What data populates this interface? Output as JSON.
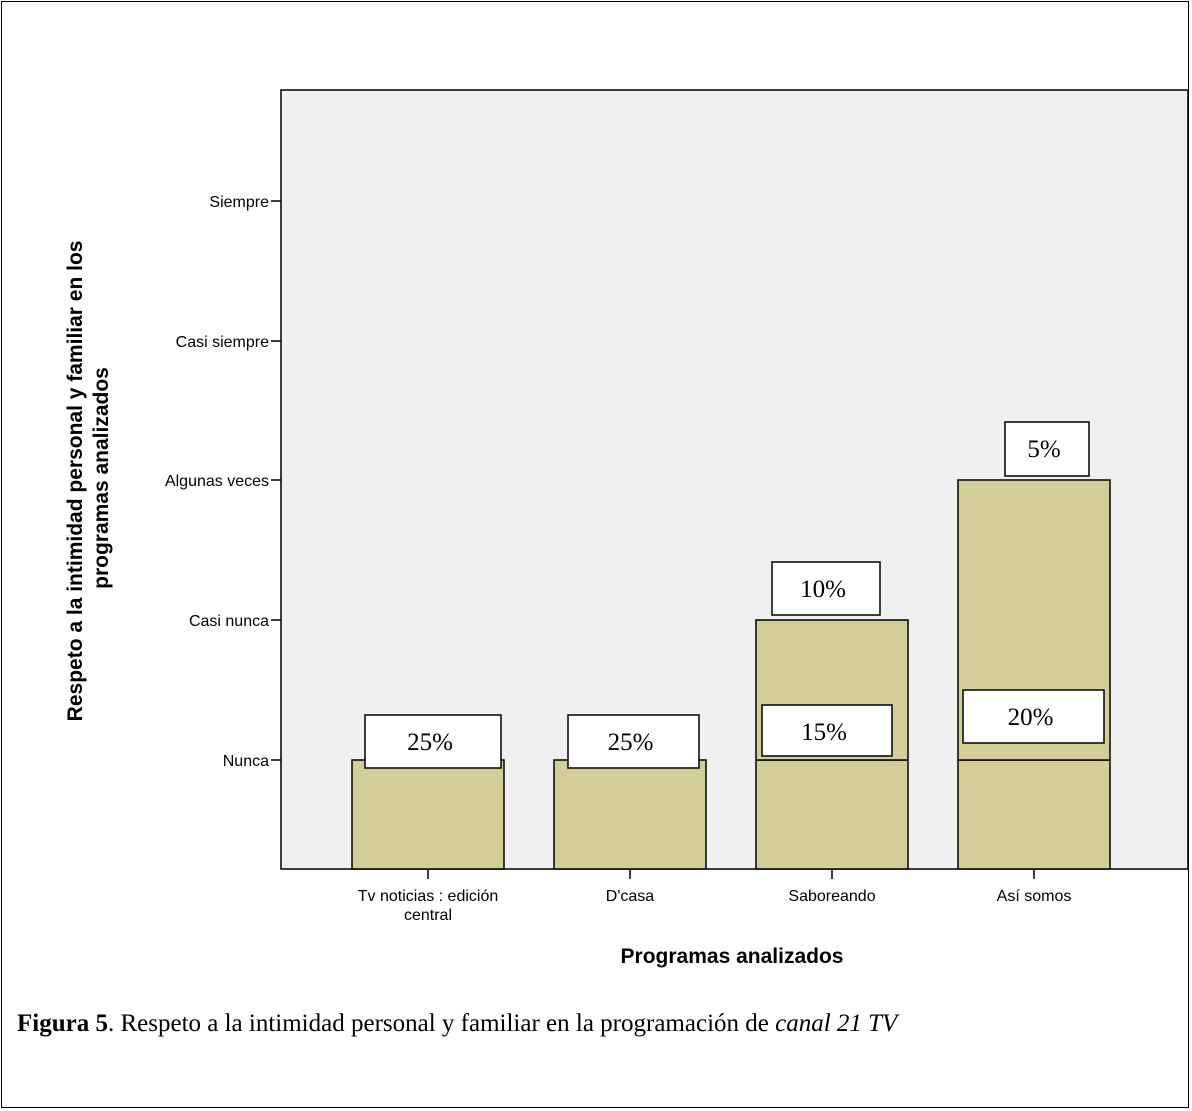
{
  "chart_data": {
    "type": "bar",
    "xlabel": "Programas analizados",
    "ylabel": "Respeto a la intimidad personal y familiar en los programas analizados",
    "y_categories": [
      "Nunca",
      "Casi nunca",
      "Algunas veces",
      "Casi siempre",
      "Siempre"
    ],
    "categories": [
      {
        "label_line1": "Tv noticias : edición",
        "label_line2": "central"
      },
      {
        "label_line1": "D'casa",
        "label_line2": ""
      },
      {
        "label_line1": "Saboreando",
        "label_line2": ""
      },
      {
        "label_line1": "Así somos",
        "label_line2": ""
      }
    ],
    "values": [
      [
        {
          "level": "Nunca",
          "percent": "25%"
        }
      ],
      [
        {
          "level": "Nunca",
          "percent": "25%"
        }
      ],
      [
        {
          "level": "Nunca",
          "percent": "15%"
        },
        {
          "level": "Casi nunca",
          "percent": "10%"
        }
      ],
      [
        {
          "level": "Nunca",
          "percent": "20%"
        },
        {
          "level": "Algunas veces",
          "percent": "5%"
        }
      ]
    ],
    "colors": {
      "plot_background": "#f0f0f0",
      "bar_fill": "#d3ce98",
      "bar_stroke": "#000000"
    }
  },
  "caption": {
    "label": "Figura 5",
    "text": ". Respeto a la intimidad personal y familiar en la programación de ",
    "emphasis": "canal 21 TV"
  }
}
